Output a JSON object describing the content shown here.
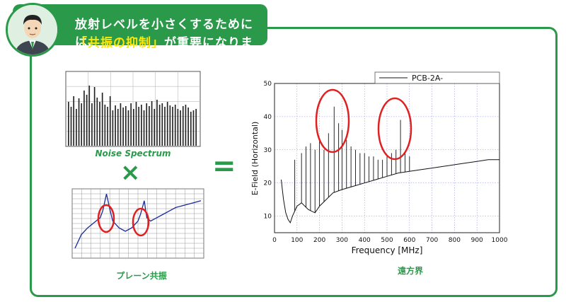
{
  "banner": {
    "line1": "放射レベルを小さくするためには、",
    "line2_hl": "「共振の抑制」",
    "line2_rest": "が重要になります！"
  },
  "left_top": {
    "caption": "Noise Spectrum"
  },
  "left_bottom": {
    "caption": "プレーン共振"
  },
  "operators": {
    "times": "×",
    "equals": "="
  },
  "right_chart": {
    "caption": "遠方界"
  },
  "colors": {
    "accent": "#2a9a4a",
    "highlight": "#ffe600",
    "circle": "#e02020",
    "line_blue": "#1a2a9a"
  },
  "chart_data": [
    {
      "type": "bar",
      "title": "Noise Spectrum",
      "values": [
        62,
        55,
        70,
        52,
        67,
        60,
        78,
        72,
        85,
        60,
        83,
        68,
        62,
        75,
        58,
        55,
        70,
        50,
        57,
        52,
        60,
        54,
        56,
        50,
        60,
        52,
        62,
        55,
        58,
        50,
        60,
        56,
        63,
        52,
        65,
        58,
        60,
        55,
        62,
        57,
        55,
        58,
        52,
        50,
        56,
        58,
        54,
        48,
        50,
        52
      ]
    },
    {
      "type": "line",
      "title": "プレーン共振",
      "x": [
        0,
        5,
        10,
        15,
        20,
        22,
        25,
        28,
        30,
        35,
        40,
        45,
        50,
        52,
        55,
        57,
        60,
        65,
        70,
        75,
        80,
        85,
        90,
        95,
        100
      ],
      "y": [
        -40,
        -32,
        -28,
        -25,
        -22,
        -18,
        -8,
        -18,
        -24,
        -28,
        -30,
        -28,
        -24,
        -20,
        -12,
        -22,
        -24,
        -22,
        -20,
        -18,
        -16,
        -15,
        -14,
        -13,
        -12
      ]
    },
    {
      "type": "line",
      "xlabel": "Frequency [MHz]",
      "ylabel": "E-Field (Horizontal)",
      "xlim": [
        0,
        1000
      ],
      "ylim": [
        5,
        50
      ],
      "xticks": [
        "0",
        "100",
        "200",
        "300",
        "400",
        "500",
        "600",
        "700",
        "800",
        "900",
        "1000"
      ],
      "yticks": [
        "10",
        "20",
        "30",
        "40",
        "50"
      ],
      "legend": "PCB-2A-",
      "grid": true,
      "series": [
        {
          "name": "PCB-2A-",
          "x": [
            30,
            40,
            50,
            60,
            70,
            80,
            100,
            120,
            150,
            180,
            200,
            230,
            260,
            300,
            350,
            400,
            450,
            500,
            550,
            600,
            650,
            700,
            750,
            800,
            850,
            900,
            950,
            1000
          ],
          "y": [
            21,
            15,
            11,
            9,
            8,
            10,
            13,
            14,
            12,
            11,
            13,
            15,
            17,
            18,
            19,
            20,
            21,
            22,
            23,
            23.5,
            24,
            24.5,
            25,
            25.5,
            26,
            26.5,
            27,
            27
          ]
        }
      ],
      "peaks": [
        {
          "x": 90,
          "y": 27
        },
        {
          "x": 120,
          "y": 29
        },
        {
          "x": 140,
          "y": 31
        },
        {
          "x": 160,
          "y": 32
        },
        {
          "x": 180,
          "y": 30
        },
        {
          "x": 200,
          "y": 33
        },
        {
          "x": 220,
          "y": 30
        },
        {
          "x": 240,
          "y": 35
        },
        {
          "x": 265,
          "y": 43
        },
        {
          "x": 285,
          "y": 38
        },
        {
          "x": 300,
          "y": 36
        },
        {
          "x": 320,
          "y": 33
        },
        {
          "x": 340,
          "y": 31
        },
        {
          "x": 360,
          "y": 30
        },
        {
          "x": 380,
          "y": 29
        },
        {
          "x": 400,
          "y": 29
        },
        {
          "x": 420,
          "y": 28
        },
        {
          "x": 440,
          "y": 28
        },
        {
          "x": 460,
          "y": 27
        },
        {
          "x": 480,
          "y": 27
        },
        {
          "x": 500,
          "y": 28
        },
        {
          "x": 520,
          "y": 29
        },
        {
          "x": 540,
          "y": 30
        },
        {
          "x": 560,
          "y": 39
        },
        {
          "x": 580,
          "y": 29
        },
        {
          "x": 600,
          "y": 28
        }
      ]
    }
  ]
}
